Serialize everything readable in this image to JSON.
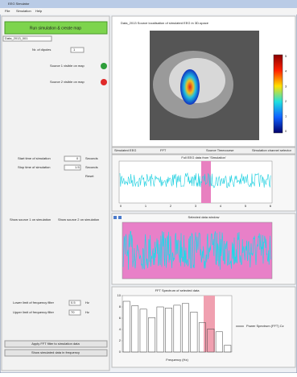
{
  "window": {
    "title": "EEG Simulator"
  },
  "menu": [
    "File",
    "Simulation",
    "Help"
  ],
  "left": {
    "run_button": "Run simulation & create map",
    "file": "Data_2013_001",
    "dipoles_label": "Nr. of dipoles",
    "dipoles_value": "1",
    "source1": "Source 1 visible on map",
    "source2": "Source 2 visible on map",
    "start_label": "Start time of simulation",
    "start_value": "0",
    "start_unit": "Seconds",
    "stop_label": "Stop time of simulation",
    "stop_value": "1.5",
    "stop_unit": "Seconds",
    "reset": "Reset",
    "show1": "Show source 1 on simulation",
    "show2": "Show source 2 on simulation",
    "lower_label": "Lower limit of frequency filter",
    "lower_value": "0.5",
    "upper_label": "Upper limit of frequency filter",
    "upper_value": "70",
    "hz": "Hz",
    "apply_button": "Apply FFT filter to simulation data",
    "show_button": "Show simulated data in frequency"
  },
  "header": "Data_2013    Source localisation of simulated EEG in 3D-space",
  "colorbar_ticks": [
    "5",
    "4",
    "3",
    "2",
    "1",
    "0"
  ],
  "tabs": [
    "Simulated EEG",
    "FFT",
    "Source Timecourse",
    "Simulation channel selector"
  ],
  "panel1": {
    "title": "Full EEG data from 'Simulation'",
    "xticks": [
      "0",
      "1",
      "2",
      "3",
      "4",
      "5",
      "6"
    ]
  },
  "panel2": {
    "title": "Selected data window"
  },
  "spectrum": {
    "title": "FFT Spectrum of selected data",
    "xlabel": "Frequency (Hz)",
    "legend": "Power Spectrum (FFT) Cz",
    "values": [
      9,
      8.2,
      7.6,
      6.1,
      8,
      7.8,
      8.3,
      8.6,
      7.1,
      5.2,
      4.1,
      3.6,
      1.2
    ],
    "ylim": [
      0,
      10
    ],
    "yticks": [
      0,
      2,
      4,
      6,
      8,
      10
    ]
  }
}
